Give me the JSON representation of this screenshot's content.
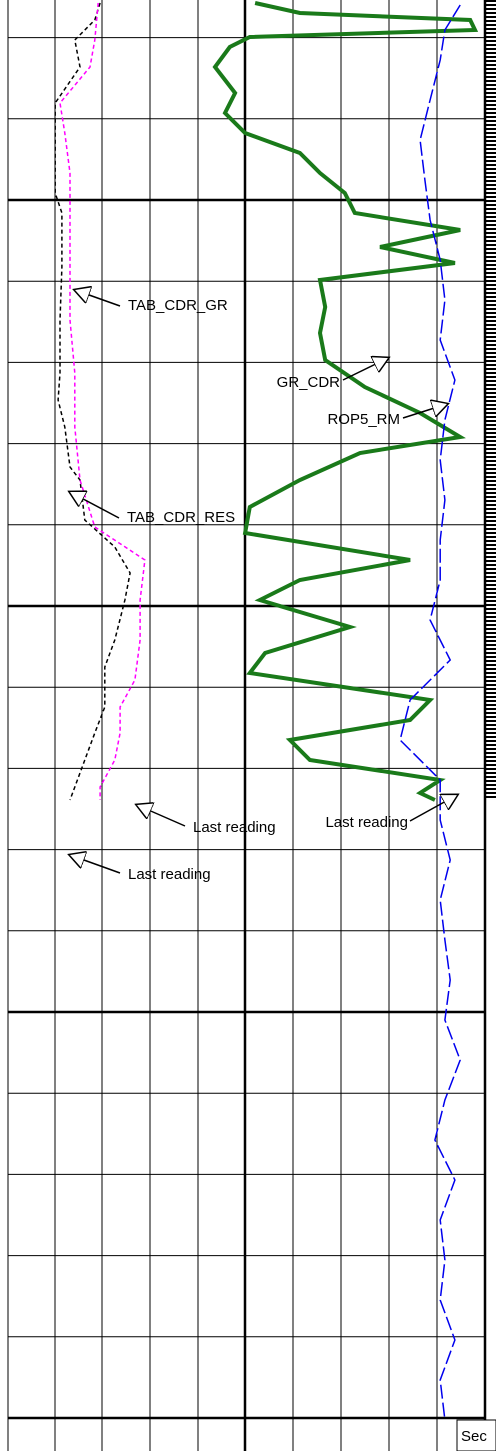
{
  "chart_data": {
    "type": "line",
    "xlim": [
      0,
      1451
    ],
    "ylim": [
      0,
      100
    ],
    "series": [
      {
        "name": "TAB_CDR_GR",
        "color": "#000000",
        "dash": true,
        "x": [
          3,
          20,
          40,
          67,
          103,
          133,
          193,
          213,
          267,
          320,
          373,
          400,
          427,
          467,
          480,
          520,
          547,
          573,
          600,
          640,
          667,
          707,
          733,
          760,
          800
        ],
        "values": [
          19.3,
          18.2,
          14.0,
          15.1,
          9.9,
          9.9,
          9.9,
          11.3,
          11.3,
          10.9,
          10.9,
          10.5,
          11.9,
          13.0,
          15.1,
          16.1,
          22.4,
          25.6,
          24.5,
          22.4,
          20.3,
          20.3,
          18.2,
          16.1,
          13.0
        ]
      },
      {
        "name": "TAB_CDR_RES",
        "color": "#ff00ff",
        "dash": true,
        "x": [
          3,
          40,
          67,
          103,
          133,
          173,
          200,
          267,
          320,
          373,
          427,
          480,
          527,
          560,
          600,
          640,
          680,
          707,
          733,
          760,
          787,
          800
        ],
        "values": [
          18.9,
          18.2,
          17.2,
          10.9,
          11.9,
          13.0,
          13.0,
          13.0,
          13.0,
          14.0,
          14.0,
          15.1,
          18.2,
          28.7,
          27.7,
          27.7,
          26.6,
          23.5,
          23.5,
          22.4,
          19.3,
          19.3
        ]
      },
      {
        "name": "GR_CDR",
        "color": "#1a7a1a",
        "dash": false,
        "x": [
          3,
          13,
          20,
          30,
          37,
          47,
          67,
          93,
          113,
          133,
          153,
          173,
          193,
          213,
          230,
          247,
          263,
          280,
          307,
          333,
          360,
          387,
          413,
          437,
          453,
          480,
          507,
          533,
          560,
          580,
          600,
          627,
          653,
          673,
          700,
          720,
          740,
          760,
          780,
          793,
          800
        ],
        "values": [
          51.8,
          61.2,
          96.9,
          97.9,
          50.7,
          46.5,
          43.4,
          47.6,
          45.5,
          49.7,
          61.2,
          65.4,
          70.6,
          72.7,
          94.8,
          78.0,
          93.7,
          65.4,
          66.5,
          65.4,
          66.5,
          74.8,
          86.4,
          94.8,
          73.8,
          61.2,
          50.7,
          49.7,
          84.3,
          61.2,
          52.8,
          71.7,
          53.9,
          50.7,
          88.5,
          84.3,
          59.1,
          63.3,
          90.6,
          86.4,
          89.5
        ]
      },
      {
        "name": "ROP5_RM",
        "color": "#0000ee",
        "dash": true,
        "x": [
          5,
          30,
          60,
          100,
          140,
          180,
          220,
          260,
          300,
          340,
          380,
          420,
          460,
          500,
          540,
          580,
          620,
          660,
          700,
          740,
          780,
          820,
          860,
          900,
          940,
          980,
          1020,
          1060,
          1100,
          1140,
          1180,
          1220,
          1260,
          1300,
          1340,
          1380,
          1420
        ],
        "values": [
          94.8,
          91.6,
          90.6,
          88.5,
          86.4,
          87.4,
          88.5,
          90.6,
          91.6,
          90.6,
          93.7,
          91.6,
          90.6,
          91.6,
          90.6,
          90.6,
          88.5,
          92.7,
          84.3,
          82.2,
          90.6,
          90.6,
          92.7,
          90.6,
          91.6,
          92.7,
          91.6,
          94.8,
          91.6,
          89.5,
          93.7,
          90.6,
          91.6,
          90.6,
          93.7,
          90.6,
          91.6
        ]
      }
    ],
    "annotations": [
      "TAB_CDR_GR",
      "TAB_CDR_RES",
      "GR_CDR",
      "ROP5_RM",
      "Last reading",
      "Last reading",
      "Last reading"
    ],
    "footer": "Sec"
  }
}
